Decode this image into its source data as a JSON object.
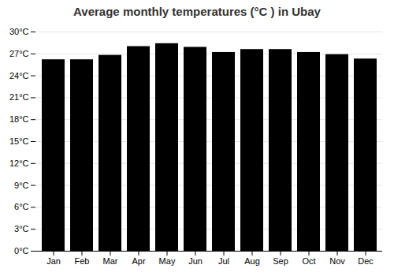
{
  "chart_data": {
    "type": "bar",
    "title": "Average monthly temperatures (°C ) in Ubay",
    "categories": [
      "Jan",
      "Feb",
      "Mar",
      "Apr",
      "May",
      "Jun",
      "Jul",
      "Aug",
      "Sep",
      "Oct",
      "Nov",
      "Dec"
    ],
    "values": [
      26.2,
      26.2,
      26.8,
      28.0,
      28.4,
      27.9,
      27.2,
      27.6,
      27.6,
      27.2,
      26.9,
      26.3
    ],
    "ylim": [
      0,
      30
    ],
    "yticks": [
      {
        "value": 0,
        "label": "0°C"
      },
      {
        "value": 3,
        "label": "3°C"
      },
      {
        "value": 6,
        "label": "6°C"
      },
      {
        "value": 9,
        "label": "9°C"
      },
      {
        "value": 12,
        "label": "12°C"
      },
      {
        "value": 15,
        "label": "15°C"
      },
      {
        "value": 18,
        "label": "18°C"
      },
      {
        "value": 21,
        "label": "21°C"
      },
      {
        "value": 24,
        "label": "24°C"
      },
      {
        "value": 27,
        "label": "27°C"
      },
      {
        "value": 30,
        "label": "30°C"
      }
    ],
    "grid": true
  }
}
